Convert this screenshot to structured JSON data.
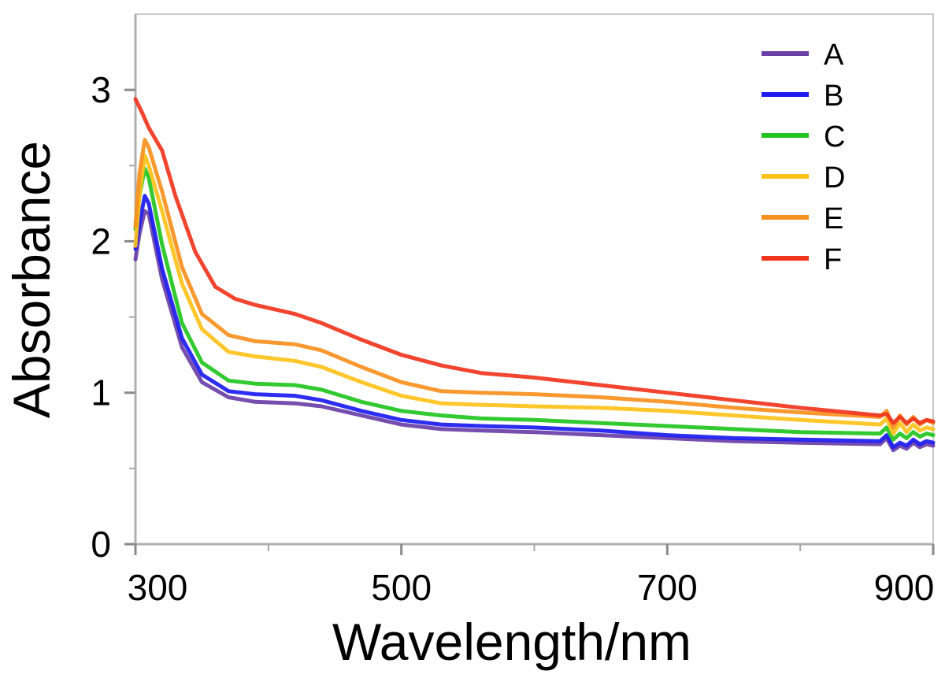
{
  "chart_data": {
    "type": "line",
    "title": "",
    "xlabel": "Wavelength/nm",
    "ylabel": "Absorbance",
    "xlim": [
      300,
      900
    ],
    "ylim": [
      0,
      3.5
    ],
    "xticks": [
      300,
      500,
      700,
      900
    ],
    "xtick_labels": [
      "300",
      "500",
      "700",
      "900"
    ],
    "x_minor_ticks": [
      400,
      600,
      800
    ],
    "yticks": [
      0,
      1,
      2,
      3
    ],
    "ytick_labels": [
      "0",
      "1",
      "2",
      "3"
    ],
    "y_minor_ticks": [
      0.5,
      1.5,
      2.5
    ],
    "grid": false,
    "legend_position": "top-right",
    "series": [
      {
        "name": "A",
        "color": "#6a3fa8",
        "x": [
          300,
          303,
          307,
          310,
          320,
          335,
          350,
          370,
          390,
          420,
          440,
          470,
          500,
          530,
          560,
          600,
          650,
          700,
          750,
          800,
          860,
          865,
          870,
          875,
          880,
          885,
          890,
          895,
          900
        ],
        "y": [
          1.88,
          2.05,
          2.2,
          2.18,
          1.75,
          1.3,
          1.07,
          0.97,
          0.94,
          0.93,
          0.91,
          0.85,
          0.79,
          0.76,
          0.75,
          0.74,
          0.72,
          0.7,
          0.68,
          0.67,
          0.66,
          0.7,
          0.62,
          0.65,
          0.63,
          0.67,
          0.64,
          0.66,
          0.65
        ]
      },
      {
        "name": "B",
        "color": "#1b1bf0",
        "x": [
          300,
          303,
          307,
          310,
          320,
          335,
          350,
          370,
          390,
          420,
          440,
          470,
          500,
          530,
          560,
          600,
          650,
          700,
          750,
          800,
          860,
          865,
          870,
          875,
          880,
          885,
          890,
          895,
          900
        ],
        "y": [
          1.95,
          2.12,
          2.3,
          2.25,
          1.82,
          1.36,
          1.12,
          1.01,
          0.99,
          0.98,
          0.95,
          0.88,
          0.82,
          0.79,
          0.78,
          0.77,
          0.75,
          0.72,
          0.7,
          0.69,
          0.68,
          0.72,
          0.64,
          0.67,
          0.65,
          0.69,
          0.66,
          0.68,
          0.67
        ]
      },
      {
        "name": "C",
        "color": "#22c51f",
        "x": [
          300,
          303,
          307,
          310,
          320,
          335,
          350,
          370,
          390,
          420,
          440,
          470,
          500,
          530,
          560,
          600,
          650,
          700,
          750,
          800,
          860,
          865,
          870,
          875,
          880,
          885,
          890,
          895,
          900
        ],
        "y": [
          2.08,
          2.3,
          2.48,
          2.42,
          1.98,
          1.46,
          1.2,
          1.08,
          1.06,
          1.05,
          1.02,
          0.94,
          0.88,
          0.85,
          0.83,
          0.82,
          0.8,
          0.78,
          0.76,
          0.74,
          0.73,
          0.77,
          0.69,
          0.73,
          0.7,
          0.74,
          0.71,
          0.73,
          0.72
        ]
      },
      {
        "name": "D",
        "color": "#ffc21a",
        "x": [
          300,
          303,
          307,
          310,
          320,
          335,
          350,
          370,
          390,
          420,
          440,
          470,
          500,
          530,
          560,
          600,
          650,
          700,
          750,
          800,
          860,
          865,
          870,
          875,
          880,
          885,
          890,
          895,
          900
        ],
        "y": [
          1.97,
          2.3,
          2.57,
          2.5,
          2.2,
          1.72,
          1.42,
          1.27,
          1.24,
          1.21,
          1.17,
          1.07,
          0.98,
          0.93,
          0.92,
          0.91,
          0.9,
          0.88,
          0.85,
          0.82,
          0.79,
          0.83,
          0.73,
          0.8,
          0.74,
          0.79,
          0.75,
          0.77,
          0.76
        ]
      },
      {
        "name": "E",
        "color": "#f7901e",
        "x": [
          300,
          303,
          307,
          310,
          320,
          335,
          350,
          370,
          390,
          420,
          440,
          470,
          500,
          530,
          560,
          600,
          650,
          700,
          750,
          800,
          860,
          865,
          870,
          875,
          880,
          885,
          890,
          895,
          900
        ],
        "y": [
          2.1,
          2.45,
          2.67,
          2.62,
          2.33,
          1.83,
          1.52,
          1.38,
          1.34,
          1.32,
          1.28,
          1.17,
          1.07,
          1.01,
          1.0,
          0.99,
          0.97,
          0.94,
          0.9,
          0.87,
          0.84,
          0.88,
          0.77,
          0.85,
          0.79,
          0.84,
          0.79,
          0.82,
          0.8
        ]
      },
      {
        "name": "F",
        "color": "#f0351e",
        "x": [
          300,
          305,
          310,
          320,
          330,
          345,
          360,
          375,
          390,
          420,
          440,
          470,
          500,
          530,
          560,
          600,
          650,
          700,
          750,
          800,
          860,
          865,
          870,
          875,
          880,
          885,
          890,
          895,
          900
        ],
        "y": [
          2.94,
          2.85,
          2.75,
          2.6,
          2.3,
          1.93,
          1.7,
          1.62,
          1.58,
          1.52,
          1.46,
          1.35,
          1.25,
          1.18,
          1.13,
          1.1,
          1.05,
          1.0,
          0.95,
          0.9,
          0.85,
          0.86,
          0.8,
          0.84,
          0.8,
          0.83,
          0.8,
          0.82,
          0.81
        ]
      }
    ]
  }
}
